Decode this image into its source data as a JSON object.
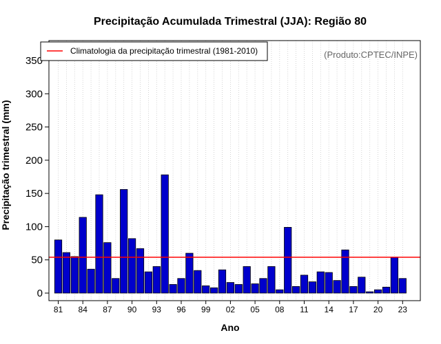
{
  "chart_data": {
    "type": "bar",
    "title": "Precipitação Acumulada Trimestral (JJA): Região 80",
    "xlabel": "Ano",
    "ylabel": "Precipitação trimestral (mm)",
    "credit": "(Produto:CPTEC/INPE)",
    "ylim": [
      0,
      380
    ],
    "yticks": [
      0,
      50,
      100,
      150,
      200,
      250,
      300,
      350
    ],
    "x_tick_labels": [
      "81",
      "84",
      "87",
      "90",
      "93",
      "96",
      "99",
      "02",
      "05",
      "08",
      "11",
      "14",
      "17",
      "20",
      "23"
    ],
    "x_tick_years": [
      1981,
      1984,
      1987,
      1990,
      1993,
      1996,
      1999,
      2002,
      2005,
      2008,
      2011,
      2014,
      2017,
      2020,
      2023
    ],
    "years": [
      1981,
      1982,
      1983,
      1984,
      1985,
      1986,
      1987,
      1988,
      1989,
      1990,
      1991,
      1992,
      1993,
      1994,
      1995,
      1996,
      1997,
      1998,
      1999,
      2000,
      2001,
      2002,
      2003,
      2004,
      2005,
      2006,
      2007,
      2008,
      2009,
      2010,
      2011,
      2012,
      2013,
      2014,
      2015,
      2016,
      2017,
      2018,
      2019,
      2020,
      2021,
      2022,
      2023
    ],
    "values": [
      80,
      61,
      55,
      114,
      36,
      148,
      76,
      22,
      156,
      82,
      67,
      32,
      40,
      178,
      13,
      22,
      60,
      34,
      11,
      8,
      35,
      16,
      13,
      40,
      14,
      22,
      40,
      5,
      99,
      10,
      27,
      17,
      32,
      31,
      19,
      65,
      10,
      24,
      2,
      5,
      9,
      54,
      22
    ],
    "bar_color": "#0000cc",
    "climatology": {
      "label": "Climatologia da precipitação trimestral (1981-2010)",
      "value": 54,
      "color": "#ff0000"
    },
    "grid": "vertical dotted",
    "legend_position": "top-left"
  }
}
